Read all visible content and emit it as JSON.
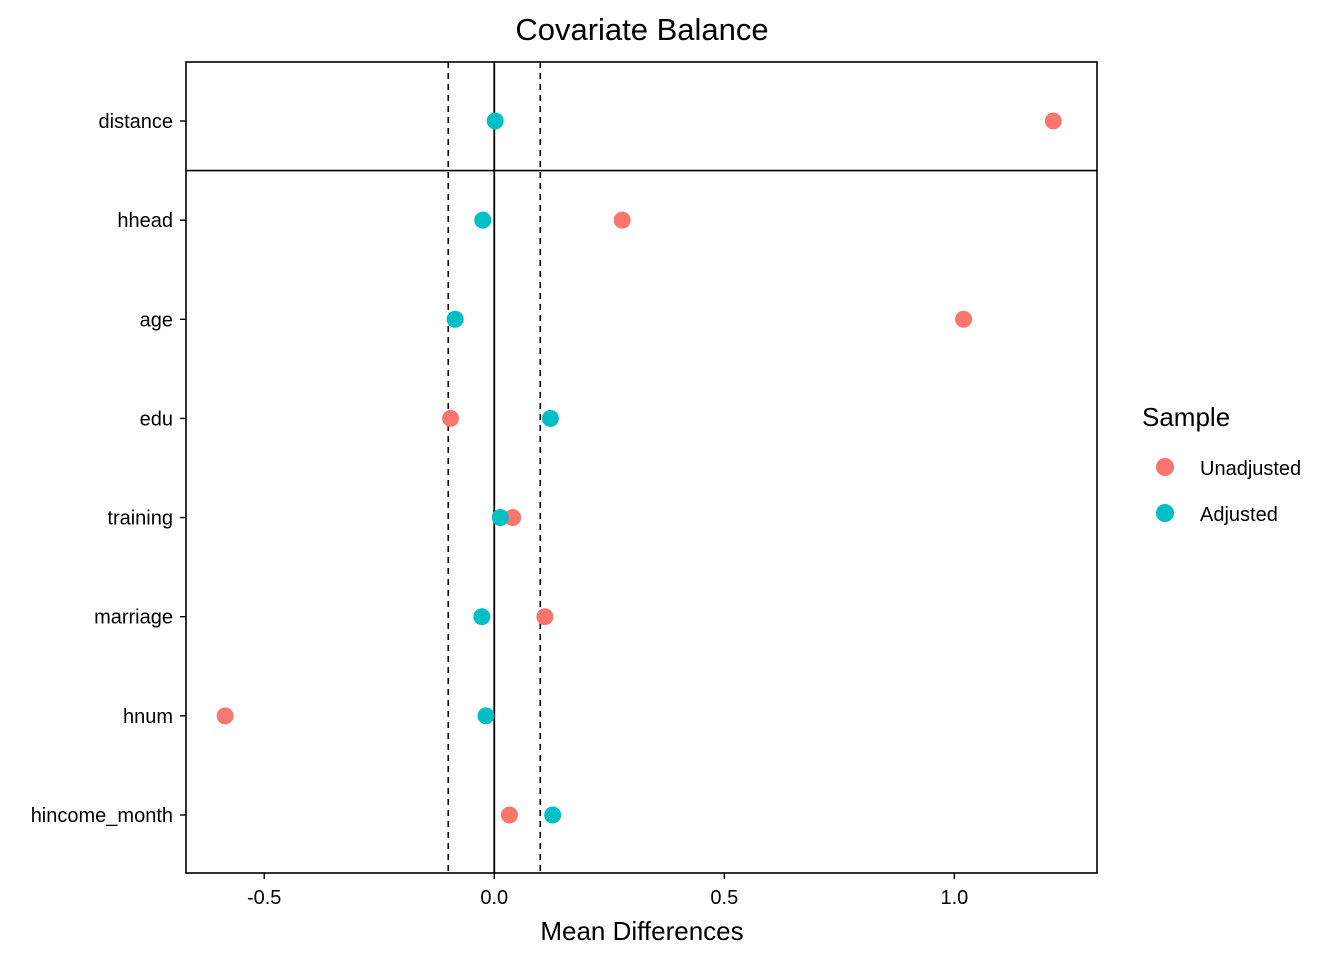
{
  "chart_data": {
    "type": "scatter",
    "title": "Covariate Balance",
    "xlabel": "Mean Differences",
    "ylabel": "",
    "xlim": [
      -0.67,
      1.31
    ],
    "x_ticks": [
      -0.5,
      0.0,
      0.5,
      1.0
    ],
    "x_tick_labels": [
      "-0.5",
      "0.0",
      "0.5",
      "1.0"
    ],
    "categories": [
      "distance",
      "hhead",
      "age",
      "edu",
      "training",
      "marriage",
      "hnum",
      "hincome_month"
    ],
    "reference_lines": {
      "solid_x": 0.0,
      "dashed_x": [
        -0.1,
        0.1
      ],
      "separator_after_category": "distance"
    },
    "series": [
      {
        "name": "Unadjusted",
        "color": "#F8766D",
        "values": [
          1.215,
          0.278,
          1.02,
          -0.095,
          0.04,
          0.11,
          -0.585,
          0.033
        ]
      },
      {
        "name": "Adjusted",
        "color": "#00BFC4",
        "values": [
          0.002,
          -0.025,
          -0.085,
          0.122,
          0.013,
          -0.027,
          -0.018,
          0.127
        ]
      }
    ],
    "legend": {
      "title": "Sample",
      "position": "right"
    },
    "grid": false
  }
}
